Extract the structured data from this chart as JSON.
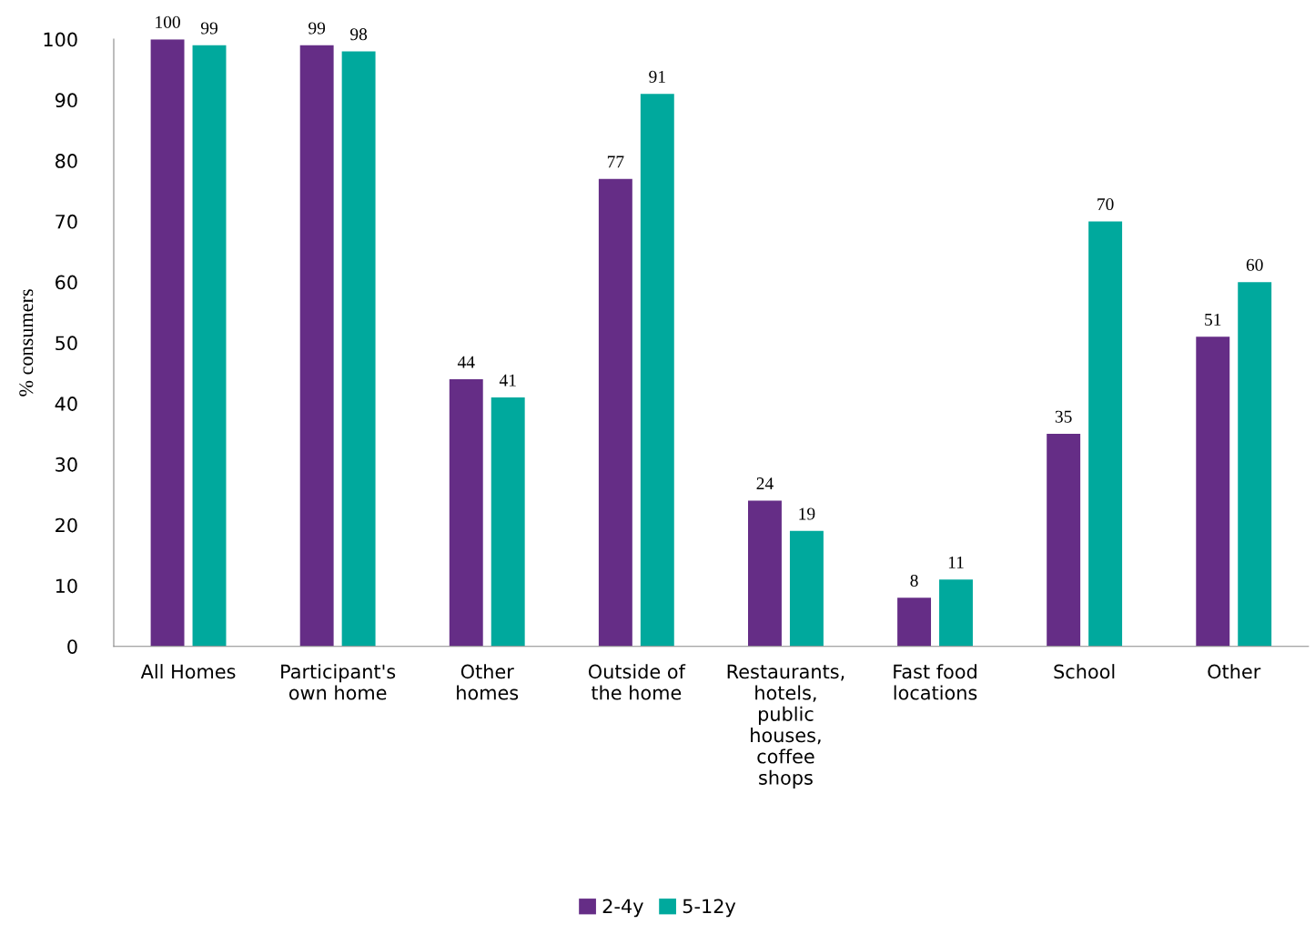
{
  "chart_data": {
    "type": "bar",
    "ylabel": "% consumers",
    "categories": [
      "All Homes",
      "Participant's\nown home",
      "Other\nhomes",
      "Outside of\nthe home",
      "Restaurants,\nhotels,\npublic\nhouses,\ncoffee\nshops",
      "Fast food\nlocations",
      "School",
      "Other"
    ],
    "series": [
      {
        "name": "2-4y",
        "color": "#652d86",
        "values": [
          100,
          99,
          44,
          77,
          24,
          8,
          35,
          51
        ]
      },
      {
        "name": "5-12y",
        "color": "#00a99d",
        "values": [
          99,
          98,
          41,
          91,
          19,
          11,
          70,
          60
        ]
      }
    ],
    "ylim": [
      0,
      100
    ],
    "yticks": [
      0,
      10,
      20,
      30,
      40,
      50,
      60,
      70,
      80,
      90,
      100
    ],
    "data_labels": true,
    "grid": false,
    "legend": "bottom"
  }
}
